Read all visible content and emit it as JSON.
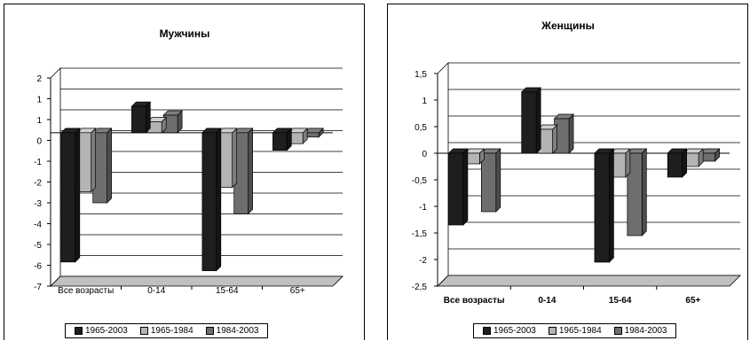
{
  "chart_data": [
    {
      "type": "bar",
      "title": "Мужчины",
      "categories": [
        "Все возрасты",
        "0-14",
        "15-64",
        "65+"
      ],
      "series": [
        {
          "name": "1965-2003",
          "values": [
            -5.9,
            1.2,
            -6.3,
            -0.8
          ]
        },
        {
          "name": "1965-1984",
          "values": [
            -2.7,
            0.5,
            -2.5,
            -0.5
          ]
        },
        {
          "name": "1984-2003",
          "values": [
            -3.2,
            0.8,
            -3.7,
            -0.2
          ]
        }
      ],
      "yticks": [
        "2",
        "1",
        "1",
        "0",
        "-1",
        "-2",
        "-3",
        "-4",
        "-5",
        "-6",
        "-7"
      ],
      "ylim": [
        -7,
        2.5
      ],
      "grid": true,
      "bold_categories": false,
      "legend": "bottom"
    },
    {
      "type": "bar",
      "title": "Женщины",
      "categories": [
        "Все возрасты",
        "0-14",
        "15-64",
        "65+"
      ],
      "series": [
        {
          "name": "1965-2003",
          "values": [
            -1.35,
            1.15,
            -2.05,
            -0.45
          ]
        },
        {
          "name": "1965-1984",
          "values": [
            -0.2,
            0.45,
            -0.45,
            -0.25
          ]
        },
        {
          "name": "1984-2003",
          "values": [
            -1.1,
            0.65,
            -1.55,
            -0.15
          ]
        }
      ],
      "yticks": [
        "1,5",
        "1",
        "0,5",
        "0",
        "-0,5",
        "-1",
        "-1,5",
        "-2",
        "-2,5"
      ],
      "ylim": [
        -2.5,
        1.5
      ],
      "grid": true,
      "bold_categories": true,
      "legend": "bottom"
    }
  ],
  "colors": {
    "series": [
      "#1e1e1e",
      "#b4b4b4",
      "#6e6e6e"
    ],
    "floor": "#c0c0c0",
    "grid": "#000000"
  }
}
